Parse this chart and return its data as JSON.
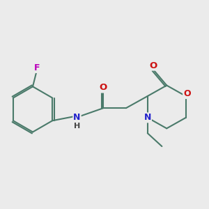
{
  "background_color": "#ebebeb",
  "bond_color": "#4a7a6a",
  "bond_width": 1.5,
  "atom_colors": {
    "N": "#2222cc",
    "O": "#cc1111",
    "F": "#bb00bb",
    "H": "#555555"
  },
  "figsize": [
    3.0,
    3.0
  ],
  "dpi": 100
}
